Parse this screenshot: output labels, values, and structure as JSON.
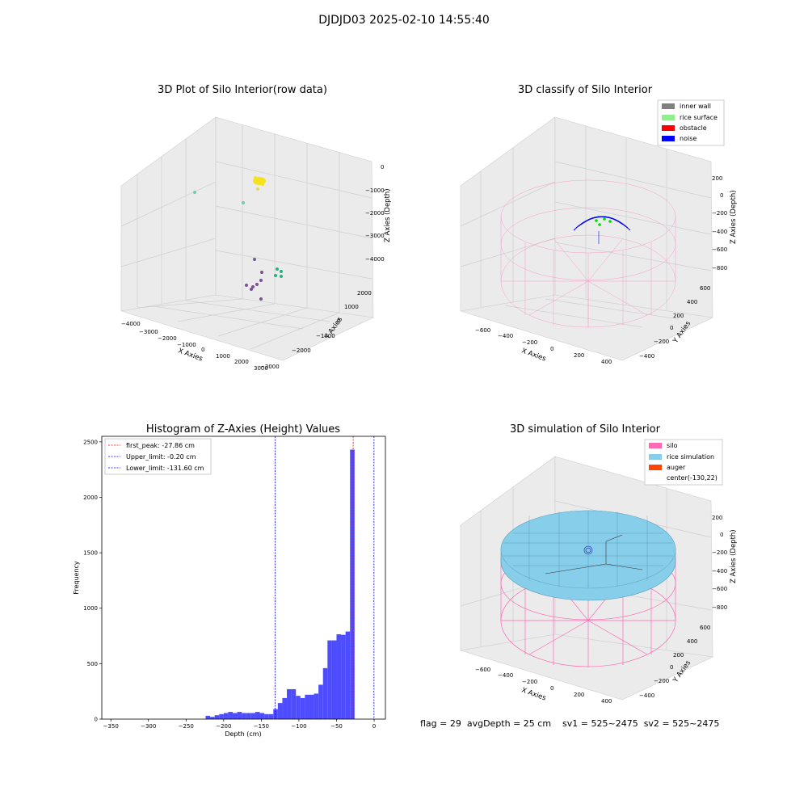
{
  "figure": {
    "title": "DJDJD03 2025-02-10 14:55:40",
    "footer": "flag = 29  avgDepth = 25 cm    sv1 = 525~2475  sv2 = 525~2475"
  },
  "colors": {
    "inner_wall": "#808080",
    "rice_surface": "#90ee90",
    "obstacle": "#ff0000",
    "noise": "#0000ff",
    "silo": "#ff69b4",
    "rice_simulation": "#87ceeb",
    "auger": "#ff4500",
    "histogram": "#4d4dff",
    "first_peak": "#ff0000",
    "upper_limit": "#0000ff",
    "lower_limit": "#0000ff"
  },
  "chart_data": [
    {
      "type": "scatter",
      "title": "3D Plot of Silo Interior(row data)",
      "xlabel": "X Axies",
      "ylabel": "Y Axies",
      "zlabel": "Z Axies (Depth)",
      "x_ticks": [
        "−4000",
        "−3000",
        "−2000",
        "−1000",
        "0",
        "1000",
        "2000",
        "3000"
      ],
      "y_ticks": [
        "−3000",
        "−2000",
        "−1000",
        "0",
        "1000",
        "2000"
      ],
      "z_ticks": [
        "0",
        "−1000",
        "−2000",
        "−3000",
        "−4000"
      ],
      "groups": [
        {
          "color": "#f5e11d",
          "points": "cluster near top centre"
        },
        {
          "color": "#75c9a8",
          "points": "scattered outliers"
        },
        {
          "color": "#2ab07f",
          "points": "mid-depth cluster"
        },
        {
          "color": "#7a5195",
          "points": "deep cluster"
        }
      ]
    },
    {
      "type": "scatter",
      "title": "3D classify of Silo Interior",
      "xlabel": "X Axies",
      "ylabel": "Y Axies",
      "zlabel": "Z Axies (Depth)",
      "x_ticks": [
        "−600",
        "−400",
        "−200",
        "0",
        "200",
        "400"
      ],
      "y_ticks": [
        "−400",
        "−200",
        "0",
        "200",
        "400",
        "600"
      ],
      "z_ticks": [
        "200",
        "0",
        "−200",
        "−400",
        "−600",
        "−800"
      ],
      "legend": [
        "inner wall",
        "rice surface",
        "obstacle",
        "noise"
      ],
      "legend_position": "top-right"
    },
    {
      "type": "bar",
      "title": "Histogram of Z-Axies (Height) Values",
      "xlabel": "Depth (cm)",
      "ylabel": "Frequency",
      "xlim": [
        -362,
        15
      ],
      "ylim": [
        0,
        2550
      ],
      "x_ticks": [
        -350,
        -300,
        -250,
        -200,
        -150,
        -100,
        -50,
        0
      ],
      "y_ticks": [
        0,
        500,
        1000,
        1500,
        2000,
        2500
      ],
      "bin_width": 6,
      "bins": [
        {
          "x0": -224,
          "count": 30
        },
        {
          "x0": -218,
          "count": 20
        },
        {
          "x0": -212,
          "count": 35
        },
        {
          "x0": -206,
          "count": 45
        },
        {
          "x0": -200,
          "count": 55
        },
        {
          "x0": -194,
          "count": 65
        },
        {
          "x0": -188,
          "count": 55
        },
        {
          "x0": -182,
          "count": 65
        },
        {
          "x0": -176,
          "count": 55
        },
        {
          "x0": -170,
          "count": 55
        },
        {
          "x0": -164,
          "count": 55
        },
        {
          "x0": -158,
          "count": 65
        },
        {
          "x0": -152,
          "count": 55
        },
        {
          "x0": -146,
          "count": 45
        },
        {
          "x0": -140,
          "count": 45
        },
        {
          "x0": -134,
          "count": 90
        },
        {
          "x0": -128,
          "count": 145
        },
        {
          "x0": -122,
          "count": 190
        },
        {
          "x0": -116,
          "count": 270
        },
        {
          "x0": -110,
          "count": 270
        },
        {
          "x0": -104,
          "count": 210
        },
        {
          "x0": -98,
          "count": 190
        },
        {
          "x0": -92,
          "count": 220
        },
        {
          "x0": -86,
          "count": 220
        },
        {
          "x0": -80,
          "count": 230
        },
        {
          "x0": -74,
          "count": 310
        },
        {
          "x0": -68,
          "count": 460
        },
        {
          "x0": -62,
          "count": 710
        },
        {
          "x0": -56,
          "count": 710
        },
        {
          "x0": -50,
          "count": 765
        },
        {
          "x0": -44,
          "count": 760
        },
        {
          "x0": -38,
          "count": 790
        },
        {
          "x0": -32,
          "count": 2430
        }
      ],
      "lines": [
        {
          "label": "first_peak: -27.86 cm",
          "x": -27.86,
          "color": "#ff0000"
        },
        {
          "label": "Upper_limit: -0.20 cm",
          "x": -0.2,
          "color": "#0000ff"
        },
        {
          "label": "Lower_limit: -131.60 cm",
          "x": -131.6,
          "color": "#0000ff"
        }
      ],
      "legend_position": "top-left"
    },
    {
      "type": "area",
      "title": "3D simulation of Silo Interior",
      "xlabel": "X Axies",
      "ylabel": "Y Axies",
      "zlabel": "Z Axies (Depth)",
      "x_ticks": [
        "−600",
        "−400",
        "−200",
        "0",
        "200",
        "400"
      ],
      "y_ticks": [
        "−400",
        "−200",
        "0",
        "200",
        "400",
        "600"
      ],
      "z_ticks": [
        "200",
        "0",
        "−200",
        "−400",
        "−600",
        "−800"
      ],
      "legend": [
        "silo",
        "rice simulation",
        "auger",
        "center(-130,22)"
      ],
      "legend_position": "top-right"
    }
  ]
}
